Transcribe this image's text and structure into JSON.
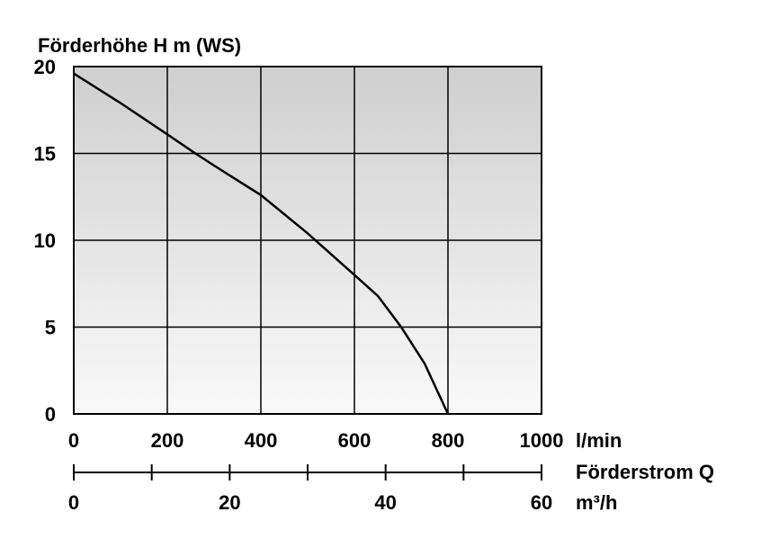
{
  "chart_data": {
    "type": "line",
    "ylabel": "Förderhöhe H m (WS)",
    "xlabel": "Förderstrom Q",
    "x_unit_primary": "l/min",
    "x_unit_secondary": "m³/h",
    "xlim": [
      0,
      1000
    ],
    "ylim": [
      0,
      20
    ],
    "grid": true,
    "y_ticks": [
      "0",
      "5",
      "10",
      "15",
      "20"
    ],
    "x_ticks_primary": [
      "0",
      "200",
      "400",
      "600",
      "800",
      "1000"
    ],
    "x_ticks_secondary": [
      "0",
      "20",
      "40",
      "60"
    ],
    "secondary_axis_ratio": 16.667,
    "series": [
      {
        "x": [
          0,
          100,
          200,
          260,
          300,
          400,
          500,
          600,
          650,
          700,
          750,
          800
        ],
        "values": [
          19.6,
          17.9,
          16.1,
          15.0,
          14.3,
          12.6,
          10.4,
          8.0,
          6.8,
          5.0,
          2.9,
          0
        ]
      }
    ],
    "colors": {
      "line": "#000000",
      "grid": "#000000",
      "bg_top": "#cfcfcf",
      "bg_bottom": "#f9f9f9"
    }
  }
}
